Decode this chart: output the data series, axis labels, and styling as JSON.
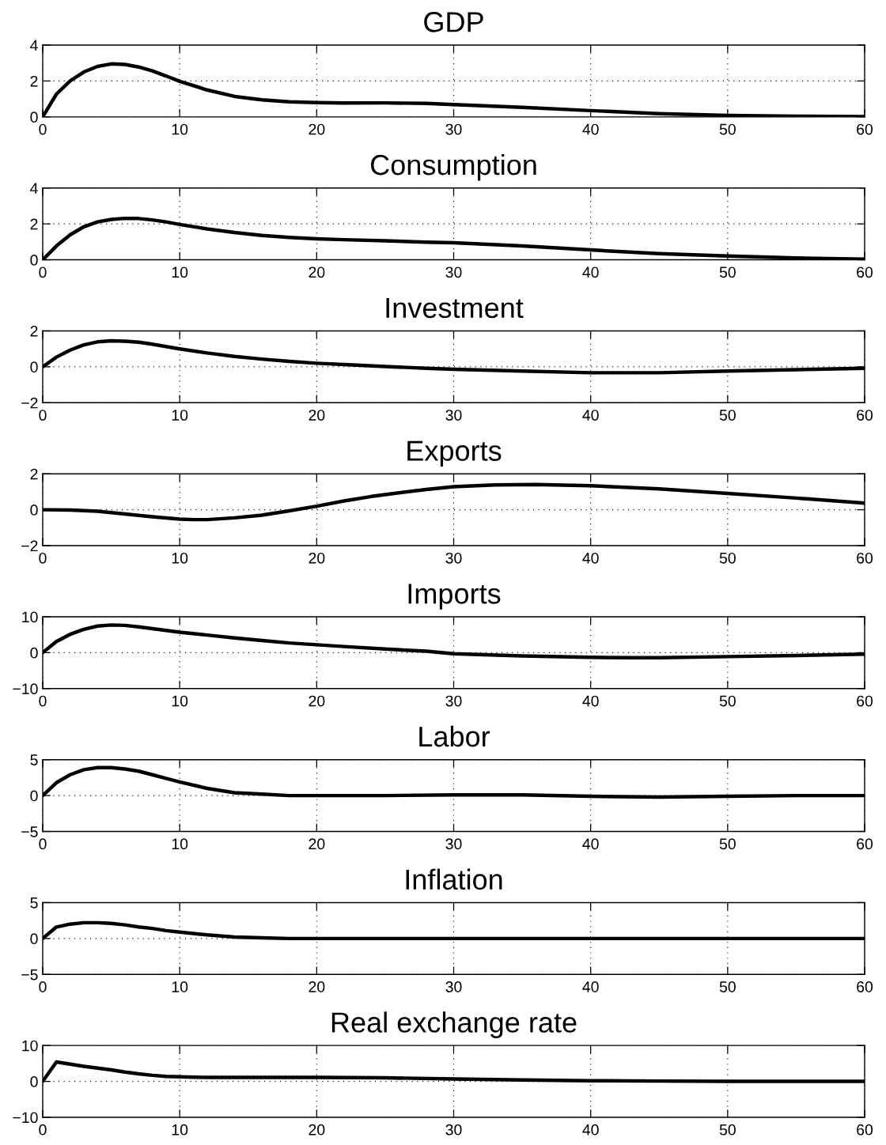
{
  "chart_data": [
    {
      "type": "line",
      "title": "GDP",
      "color": "#000000",
      "line_style": "solid",
      "grid": true,
      "xlim": [
        0,
        60
      ],
      "xticks": [
        0,
        10,
        20,
        30,
        40,
        50,
        60
      ],
      "ylim": [
        0,
        4
      ],
      "yticks": [
        0,
        2,
        4
      ],
      "x": [
        0,
        1,
        2,
        3,
        4,
        5,
        6,
        7,
        8,
        9,
        10,
        12,
        14,
        16,
        18,
        20,
        22,
        25,
        28,
        30,
        35,
        40,
        45,
        50,
        55,
        60
      ],
      "values": [
        0,
        1.27,
        2.0,
        2.5,
        2.81,
        2.95,
        2.92,
        2.78,
        2.56,
        2.28,
        1.98,
        1.5,
        1.14,
        0.95,
        0.84,
        0.8,
        0.77,
        0.78,
        0.75,
        0.69,
        0.53,
        0.35,
        0.18,
        0.08,
        0.04,
        0.02
      ]
    },
    {
      "type": "line",
      "title": "Consumption",
      "color": "#000000",
      "line_style": "solid",
      "grid": true,
      "xlim": [
        0,
        60
      ],
      "xticks": [
        0,
        10,
        20,
        30,
        40,
        50,
        60
      ],
      "ylim": [
        0,
        4
      ],
      "yticks": [
        0,
        2,
        4
      ],
      "x": [
        0,
        1,
        2,
        3,
        4,
        5,
        6,
        7,
        8,
        9,
        10,
        12,
        14,
        16,
        18,
        20,
        22,
        25,
        28,
        30,
        35,
        40,
        45,
        50,
        55,
        60
      ],
      "values": [
        0,
        0.77,
        1.39,
        1.84,
        2.11,
        2.25,
        2.31,
        2.3,
        2.22,
        2.11,
        1.97,
        1.72,
        1.52,
        1.36,
        1.25,
        1.17,
        1.12,
        1.06,
        0.98,
        0.95,
        0.77,
        0.55,
        0.34,
        0.21,
        0.1,
        0.04
      ]
    },
    {
      "type": "line",
      "title": "Investment",
      "color": "#000000",
      "line_style": "solid",
      "grid": true,
      "xlim": [
        0,
        60
      ],
      "xticks": [
        0,
        10,
        20,
        30,
        40,
        50,
        60
      ],
      "ylim": [
        -2,
        2
      ],
      "yticks": [
        {
          "value": -2,
          "label": "−2"
        },
        0,
        2
      ],
      "x": [
        0,
        1,
        2,
        3,
        4,
        5,
        6,
        7,
        8,
        9,
        10,
        12,
        14,
        16,
        18,
        20,
        22,
        25,
        28,
        30,
        35,
        40,
        45,
        50,
        55,
        60
      ],
      "values": [
        0,
        0.54,
        0.93,
        1.22,
        1.39,
        1.45,
        1.43,
        1.37,
        1.26,
        1.13,
        1.0,
        0.77,
        0.58,
        0.43,
        0.3,
        0.2,
        0.13,
        0.02,
        -0.08,
        -0.14,
        -0.24,
        -0.33,
        -0.33,
        -0.24,
        -0.16,
        -0.08
      ]
    },
    {
      "type": "line",
      "title": "Exports",
      "color": "#000000",
      "line_style": "solid",
      "grid": true,
      "xlim": [
        0,
        60
      ],
      "xticks": [
        0,
        10,
        20,
        30,
        40,
        50,
        60
      ],
      "ylim": [
        -2,
        2
      ],
      "yticks": [
        {
          "value": -2,
          "label": "−2"
        },
        0,
        2
      ],
      "x": [
        0,
        2,
        4,
        6,
        8,
        10,
        11,
        12,
        14,
        16,
        18,
        20,
        22,
        24,
        26,
        28,
        30,
        33,
        36,
        40,
        45,
        50,
        55,
        60
      ],
      "values": [
        0,
        -0.02,
        -0.08,
        -0.24,
        -0.39,
        -0.52,
        -0.55,
        -0.55,
        -0.45,
        -0.3,
        -0.06,
        0.2,
        0.49,
        0.74,
        0.94,
        1.13,
        1.28,
        1.38,
        1.4,
        1.34,
        1.16,
        0.91,
        0.65,
        0.37
      ]
    },
    {
      "type": "line",
      "title": "Imports",
      "color": "#000000",
      "line_style": "solid",
      "grid": true,
      "xlim": [
        0,
        60
      ],
      "xticks": [
        0,
        10,
        20,
        30,
        40,
        50,
        60
      ],
      "ylim": [
        -10,
        10
      ],
      "yticks": [
        {
          "value": -10,
          "label": "−10"
        },
        0,
        10
      ],
      "x": [
        0,
        1,
        2,
        3,
        4,
        5,
        6,
        7,
        8,
        9,
        10,
        12,
        14,
        16,
        18,
        20,
        22,
        25,
        28,
        30,
        35,
        40,
        43,
        45,
        50,
        55,
        60
      ],
      "values": [
        0,
        3.1,
        5.1,
        6.5,
        7.4,
        7.7,
        7.6,
        7.2,
        6.7,
        6.2,
        5.7,
        4.9,
        4.1,
        3.4,
        2.7,
        2.2,
        1.7,
        1.0,
        0.4,
        -0.3,
        -0.9,
        -1.3,
        -1.4,
        -1.4,
        -1.1,
        -0.8,
        -0.4
      ]
    },
    {
      "type": "line",
      "title": "Labor",
      "color": "#000000",
      "line_style": "solid",
      "grid": true,
      "xlim": [
        0,
        60
      ],
      "xticks": [
        0,
        10,
        20,
        30,
        40,
        50,
        60
      ],
      "ylim": [
        -5,
        5
      ],
      "yticks": [
        {
          "value": -5,
          "label": "−5"
        },
        0,
        5
      ],
      "x": [
        0,
        1,
        2,
        3,
        4,
        5,
        6,
        7,
        8,
        9,
        10,
        12,
        14,
        16,
        18,
        20,
        25,
        30,
        35,
        40,
        45,
        50,
        55,
        60
      ],
      "values": [
        0,
        1.8,
        2.9,
        3.6,
        3.9,
        3.9,
        3.7,
        3.4,
        2.9,
        2.4,
        1.9,
        1.0,
        0.4,
        0.2,
        0,
        0,
        0,
        0.1,
        0.1,
        -0.1,
        -0.2,
        -0.1,
        0,
        0
      ]
    },
    {
      "type": "line",
      "title": "Inflation",
      "color": "#000000",
      "line_style": "solid",
      "grid": true,
      "xlim": [
        0,
        60
      ],
      "xticks": [
        0,
        10,
        20,
        30,
        40,
        50,
        60
      ],
      "ylim": [
        -5,
        5
      ],
      "yticks": [
        {
          "value": -5,
          "label": "−5"
        },
        0,
        5
      ],
      "x": [
        0,
        1,
        2,
        3,
        4,
        5,
        6,
        7,
        8,
        9,
        10,
        12,
        14,
        16,
        18,
        20,
        30,
        40,
        50,
        60
      ],
      "values": [
        0,
        1.6,
        2.0,
        2.2,
        2.2,
        2.1,
        1.9,
        1.6,
        1.4,
        1.1,
        0.9,
        0.5,
        0.2,
        0.1,
        0,
        0,
        0,
        0,
        0,
        0
      ]
    },
    {
      "type": "line",
      "title": "Real exchange rate",
      "color": "#000000",
      "line_style": "solid",
      "grid": true,
      "xlim": [
        0,
        60
      ],
      "xticks": [
        0,
        10,
        20,
        30,
        40,
        50,
        60
      ],
      "ylim": [
        -10,
        10
      ],
      "yticks": [
        {
          "value": -10,
          "label": "−10"
        },
        0,
        10
      ],
      "x": [
        0,
        1,
        2,
        3,
        4,
        5,
        6,
        7,
        8,
        9,
        10,
        12,
        14,
        16,
        20,
        25,
        30,
        35,
        40,
        45,
        50,
        60
      ],
      "values": [
        0,
        5.4,
        4.8,
        4.2,
        3.7,
        3.2,
        2.6,
        2.1,
        1.7,
        1.4,
        1.3,
        1.1,
        1.1,
        1.1,
        1.1,
        1.0,
        0.7,
        0.4,
        0.2,
        0.1,
        0,
        0
      ]
    }
  ]
}
